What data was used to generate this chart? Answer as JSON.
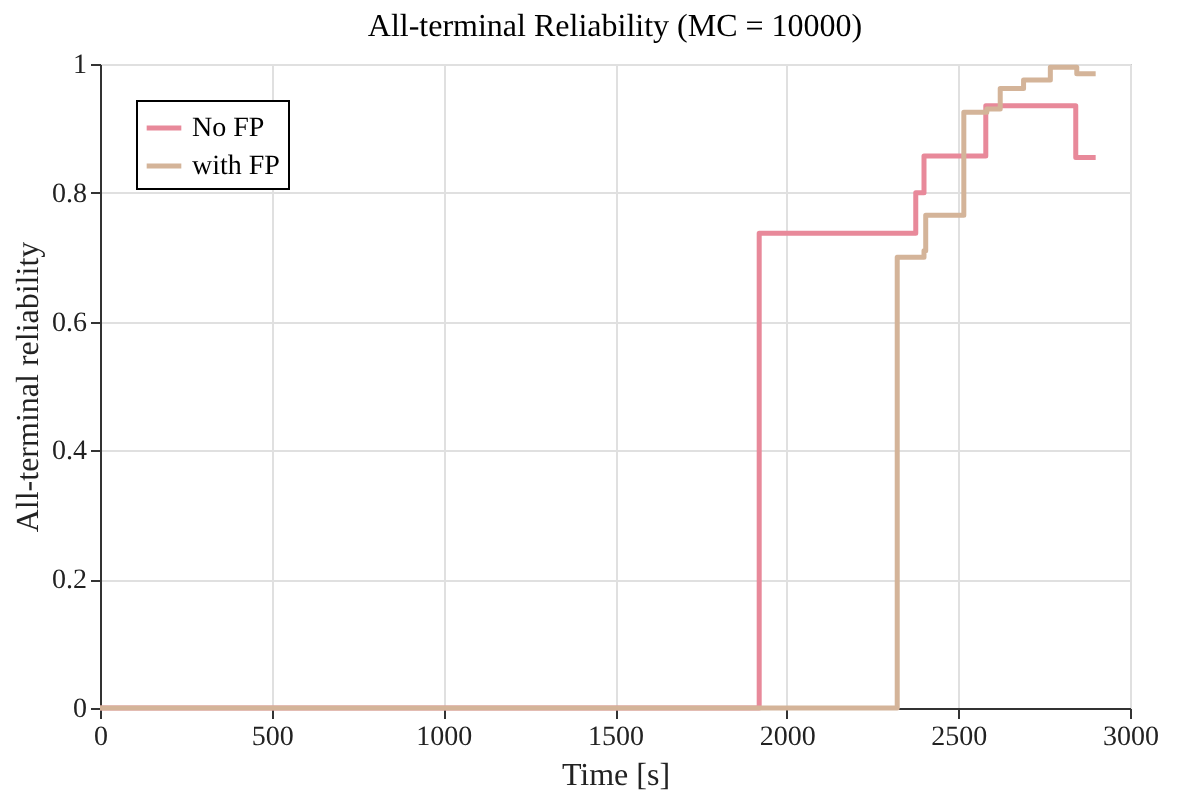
{
  "chart_data": {
    "type": "step",
    "title": "All-terminal Reliability (MC = 10000)",
    "xlabel": "Time [s]",
    "ylabel": "All-terminal reliability",
    "xlim": [
      0,
      3000
    ],
    "xticks": [
      0,
      500,
      1000,
      1500,
      2000,
      2500,
      3000
    ],
    "ylim": [
      0,
      1
    ],
    "yticks": [
      0,
      0.2,
      0.4,
      0.6,
      0.8,
      1
    ],
    "grid": true,
    "legend": "top left",
    "line_style": "solid",
    "series": [
      {
        "name": "No FP",
        "color": "#e8899a",
        "x": [
          0,
          1920,
          2376,
          2400,
          2580,
          2842,
          2900
        ],
        "values": [
          0,
          0.737,
          0.8,
          0.857,
          0.935,
          0.855,
          0.855
        ]
      },
      {
        "name": "with FP",
        "color": "#d4b499",
        "x": [
          0,
          2322,
          2400,
          2405,
          2516,
          2583,
          2622,
          2690,
          2768,
          2845,
          2900
        ],
        "values": [
          0,
          0.7,
          0.71,
          0.765,
          0.925,
          0.93,
          0.962,
          0.975,
          0.995,
          0.985,
          0.985
        ]
      }
    ]
  }
}
